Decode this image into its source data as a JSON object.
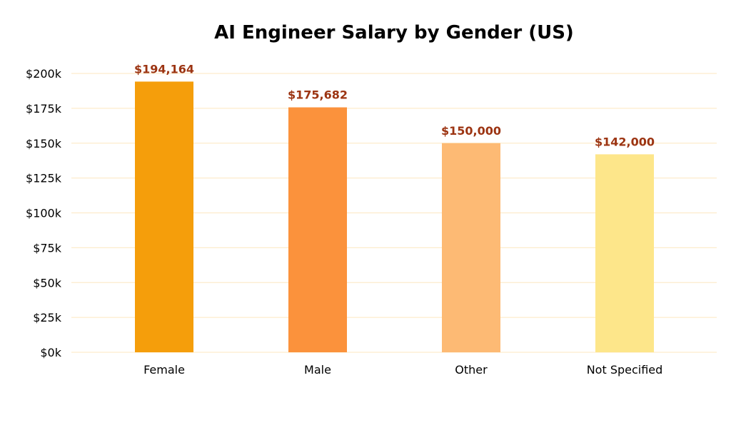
{
  "chart_data": {
    "type": "bar",
    "title": "AI Engineer Salary by Gender (US)",
    "xlabel": "",
    "ylabel": "",
    "categories": [
      "Female",
      "Male",
      "Other",
      "Not Specified"
    ],
    "values": [
      194164,
      175682,
      150000,
      142000
    ],
    "data_labels": [
      "$194,164",
      "$175,682",
      "$150,000",
      "$142,000"
    ],
    "bar_colors": [
      "#f59e0b",
      "#fb923c",
      "#fdba74",
      "#fde68a"
    ],
    "ylim": [
      0,
      200000
    ],
    "yticks": [
      0,
      25000,
      50000,
      75000,
      100000,
      125000,
      150000,
      175000,
      200000
    ],
    "ytick_labels": [
      "$0k",
      "$25k",
      "$50k",
      "$75k",
      "$100k",
      "$125k",
      "$150k",
      "$175k",
      "$200k"
    ],
    "grid": true,
    "grid_color": "#fdeccc",
    "label_color": "#9c3412"
  }
}
